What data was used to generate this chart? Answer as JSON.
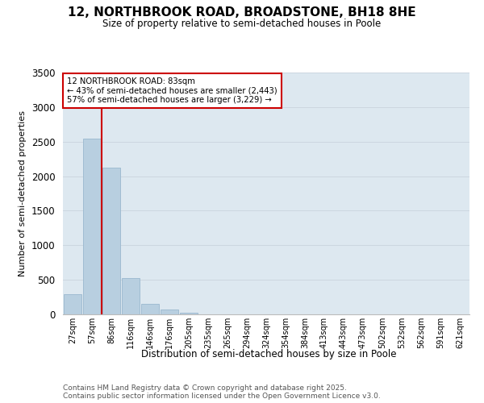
{
  "title": "12, NORTHBROOK ROAD, BROADSTONE, BH18 8HE",
  "subtitle": "Size of property relative to semi-detached houses in Poole",
  "xlabel": "Distribution of semi-detached houses by size in Poole",
  "ylabel": "Number of semi-detached properties",
  "categories": [
    "27sqm",
    "57sqm",
    "86sqm",
    "116sqm",
    "146sqm",
    "176sqm",
    "205sqm",
    "235sqm",
    "265sqm",
    "294sqm",
    "324sqm",
    "354sqm",
    "384sqm",
    "413sqm",
    "443sqm",
    "473sqm",
    "502sqm",
    "532sqm",
    "562sqm",
    "591sqm",
    "621sqm"
  ],
  "values": [
    295,
    2548,
    2122,
    527,
    148,
    72,
    18,
    5,
    2,
    0,
    0,
    0,
    0,
    0,
    0,
    0,
    0,
    0,
    0,
    0,
    0
  ],
  "bar_color": "#b8cfe0",
  "bar_edge_color": "#9ab8cf",
  "grid_color": "#ccd6e0",
  "background_color": "#dde8f0",
  "property_line_color": "#cc0000",
  "annotation_box_color": "#cc0000",
  "ylim": [
    0,
    3500
  ],
  "yticks": [
    0,
    500,
    1000,
    1500,
    2000,
    2500,
    3000,
    3500
  ],
  "property_label": "12 NORTHBROOK ROAD: 83sqm",
  "pct_smaller": 43,
  "pct_smaller_count": 2443,
  "pct_larger": 57,
  "pct_larger_count": 3229,
  "prop_bar_index": 2,
  "footnote1": "Contains HM Land Registry data © Crown copyright and database right 2025.",
  "footnote2": "Contains public sector information licensed under the Open Government Licence v3.0."
}
